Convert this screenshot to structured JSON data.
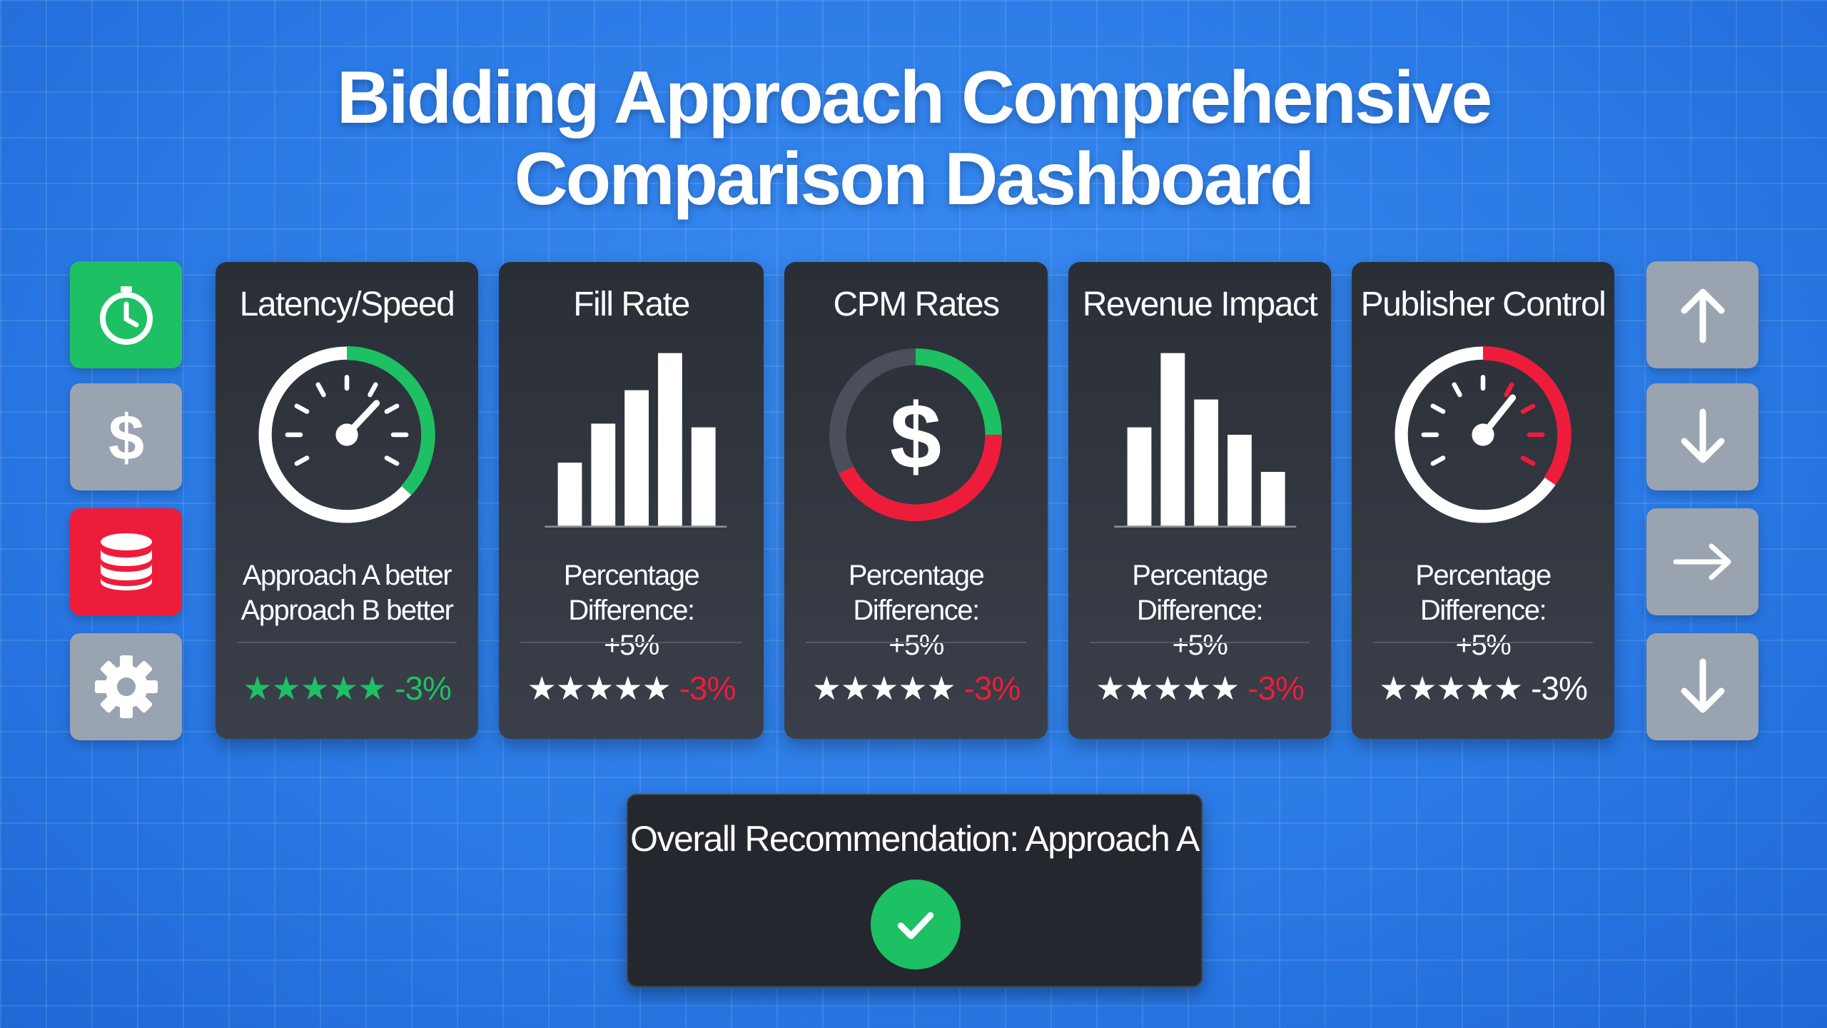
{
  "title": {
    "line1": "Bidding Approach Comprehensive",
    "line2": "Comparison Dashboard"
  },
  "colors": {
    "green": "#1ec064",
    "red": "#ee1c3b",
    "gray": "#9aa3b0",
    "card": "#2e323a",
    "background": "#2b7be6"
  },
  "left_toolbar": [
    {
      "icon": "stopwatch-icon",
      "color": "#1ec064"
    },
    {
      "icon": "dollar-icon",
      "color": "#9aa3b0"
    },
    {
      "icon": "database-icon",
      "color": "#ee1c3b"
    },
    {
      "icon": "gear-icon",
      "color": "#9aa3b0"
    }
  ],
  "right_toolbar": [
    {
      "icon": "arrow-up-icon"
    },
    {
      "icon": "arrow-down-icon"
    },
    {
      "icon": "arrow-right-icon"
    },
    {
      "icon": "arrow-down-icon"
    }
  ],
  "cards": [
    {
      "title": "Latency/Speed",
      "icon": "speedometer-green",
      "line1": "Approach A better",
      "line2": "Approach B better",
      "stars": "★★★★★",
      "stars_color": "#1ec064",
      "delta": "-3%",
      "delta_color": "#1ec064"
    },
    {
      "title": "Fill Rate",
      "icon": "bar-chart-rising",
      "line1": "Percentage Difference:",
      "line2": "+5%",
      "stars": "★★★★★",
      "stars_color": "#ffffff",
      "delta": "-3%",
      "delta_color": "#ee1c3b"
    },
    {
      "title": "CPM Rates",
      "icon": "dollar-donut",
      "line1": "Percentage Difference:",
      "line2": "+5%",
      "stars": "★★★★★",
      "stars_color": "#ffffff",
      "delta": "-3%",
      "delta_color": "#ee1c3b"
    },
    {
      "title": "Revenue Impact",
      "icon": "bar-chart-falling",
      "line1": "Percentage Difference:",
      "line2": "+5%",
      "stars": "★★★★★",
      "stars_color": "#ffffff",
      "delta": "-3%",
      "delta_color": "#ee1c3b"
    },
    {
      "title": "Publisher Control",
      "icon": "speedometer-red",
      "line1": "Percentage Difference:",
      "line2": "+5%",
      "stars": "★★★★★",
      "stars_color": "#ffffff",
      "delta": "-3%",
      "delta_color": "#ffffff"
    }
  ],
  "recommendation": {
    "label": "Overall Recommendation: Approach A",
    "icon": "checkmark-icon"
  }
}
